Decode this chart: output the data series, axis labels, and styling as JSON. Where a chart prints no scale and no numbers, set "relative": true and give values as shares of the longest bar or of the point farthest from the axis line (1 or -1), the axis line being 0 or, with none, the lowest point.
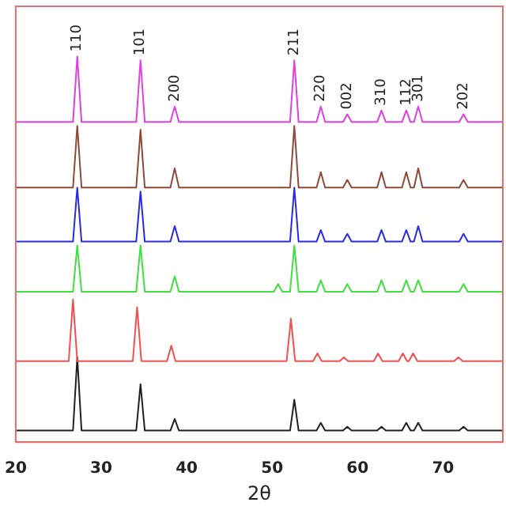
{
  "chart_data": {
    "type": "line",
    "relative": true,
    "xlabel": "2θ",
    "xlim": [
      20,
      77
    ],
    "xticks": [
      20,
      30,
      40,
      50,
      60,
      70
    ],
    "grid": false,
    "legend": false,
    "series": [
      {
        "color": "#e040e0",
        "x": [
          20,
          26.7,
          27.2,
          27.7,
          34.1,
          34.6,
          35.1,
          38.1,
          38.6,
          39.1,
          52.1,
          52.6,
          53.1,
          55.2,
          55.7,
          56.2,
          58.3,
          58.8,
          59.3,
          62.3,
          62.8,
          63.3,
          65.2,
          65.7,
          66.2,
          66.6,
          67.1,
          67.6,
          71.9,
          72.4,
          72.9,
          77
        ],
        "values": [
          0.83,
          0.83,
          1.0,
          0.83,
          0.83,
          0.99,
          0.83,
          0.83,
          0.87,
          0.83,
          0.83,
          0.99,
          0.83,
          0.83,
          0.87,
          0.83,
          0.83,
          0.85,
          0.83,
          0.83,
          0.86,
          0.83,
          0.83,
          0.86,
          0.83,
          0.83,
          0.87,
          0.83,
          0.83,
          0.85,
          0.83,
          0.83
        ]
      },
      {
        "color": "#8b4a3a",
        "x": [
          20,
          26.7,
          27.2,
          27.7,
          34.1,
          34.6,
          35.1,
          38.1,
          38.6,
          39.1,
          52.1,
          52.6,
          53.1,
          55.2,
          55.7,
          56.2,
          58.3,
          58.8,
          59.3,
          62.3,
          62.8,
          63.3,
          65.2,
          65.7,
          66.2,
          66.6,
          67.1,
          67.6,
          71.9,
          72.4,
          72.9,
          77
        ],
        "values": [
          0.66,
          0.66,
          0.82,
          0.66,
          0.66,
          0.81,
          0.66,
          0.66,
          0.71,
          0.66,
          0.66,
          0.82,
          0.66,
          0.66,
          0.7,
          0.66,
          0.66,
          0.68,
          0.66,
          0.66,
          0.7,
          0.66,
          0.66,
          0.7,
          0.66,
          0.66,
          0.71,
          0.66,
          0.66,
          0.68,
          0.66,
          0.66
        ]
      },
      {
        "color": "#2a2ae0",
        "x": [
          20,
          26.7,
          27.2,
          27.7,
          34.1,
          34.6,
          35.1,
          38.1,
          38.6,
          39.1,
          52.1,
          52.6,
          53.1,
          55.2,
          55.7,
          56.2,
          58.3,
          58.8,
          59.3,
          62.3,
          62.8,
          63.3,
          65.2,
          65.7,
          66.2,
          66.6,
          67.1,
          67.6,
          71.9,
          72.4,
          72.9,
          77
        ],
        "values": [
          0.52,
          0.52,
          0.66,
          0.52,
          0.52,
          0.65,
          0.52,
          0.52,
          0.56,
          0.52,
          0.52,
          0.66,
          0.52,
          0.52,
          0.55,
          0.52,
          0.52,
          0.54,
          0.52,
          0.52,
          0.55,
          0.52,
          0.52,
          0.55,
          0.52,
          0.52,
          0.56,
          0.52,
          0.52,
          0.54,
          0.52,
          0.52
        ]
      },
      {
        "color": "#40e040",
        "x": [
          20,
          26.7,
          27.2,
          27.7,
          34.1,
          34.6,
          35.1,
          38.1,
          38.6,
          39.1,
          50.2,
          50.7,
          51.2,
          52.1,
          52.6,
          53.1,
          55.2,
          55.7,
          56.2,
          58.3,
          58.8,
          59.3,
          62.3,
          62.8,
          63.3,
          65.2,
          65.7,
          66.2,
          66.6,
          67.1,
          67.6,
          71.9,
          72.4,
          72.9,
          77
        ],
        "values": [
          0.39,
          0.39,
          0.51,
          0.39,
          0.39,
          0.51,
          0.39,
          0.39,
          0.43,
          0.39,
          0.39,
          0.41,
          0.39,
          0.39,
          0.51,
          0.39,
          0.39,
          0.42,
          0.39,
          0.39,
          0.41,
          0.39,
          0.39,
          0.42,
          0.39,
          0.39,
          0.42,
          0.39,
          0.39,
          0.42,
          0.39,
          0.39,
          0.41,
          0.39,
          0.39
        ]
      },
      {
        "color": "#f05050",
        "x": [
          20,
          26.2,
          26.7,
          27.2,
          33.7,
          34.2,
          34.7,
          37.7,
          38.2,
          38.7,
          51.7,
          52.2,
          52.7,
          54.8,
          55.3,
          55.8,
          57.9,
          58.4,
          58.9,
          61.9,
          62.4,
          62.9,
          64.8,
          65.3,
          65.8,
          66.0,
          66.5,
          67.0,
          71.3,
          71.8,
          72.3,
          77
        ],
        "values": [
          0.21,
          0.21,
          0.37,
          0.21,
          0.21,
          0.35,
          0.21,
          0.21,
          0.25,
          0.21,
          0.21,
          0.32,
          0.21,
          0.21,
          0.23,
          0.21,
          0.21,
          0.22,
          0.21,
          0.21,
          0.23,
          0.21,
          0.21,
          0.23,
          0.21,
          0.21,
          0.23,
          0.21,
          0.21,
          0.22,
          0.21,
          0.21
        ]
      },
      {
        "color": "#202020",
        "x": [
          20,
          26.7,
          27.2,
          27.7,
          34.1,
          34.6,
          35.1,
          38.1,
          38.6,
          39.1,
          52.1,
          52.6,
          53.1,
          55.2,
          55.7,
          56.2,
          58.3,
          58.8,
          59.3,
          62.3,
          62.8,
          63.3,
          65.2,
          65.7,
          66.2,
          66.6,
          67.1,
          67.6,
          71.9,
          72.4,
          72.9,
          77
        ],
        "values": [
          0.03,
          0.03,
          0.22,
          0.03,
          0.03,
          0.15,
          0.03,
          0.03,
          0.06,
          0.03,
          0.03,
          0.11,
          0.03,
          0.03,
          0.05,
          0.03,
          0.03,
          0.04,
          0.03,
          0.03,
          0.04,
          0.03,
          0.03,
          0.05,
          0.03,
          0.03,
          0.05,
          0.03,
          0.03,
          0.04,
          0.03,
          0.03
        ]
      }
    ],
    "annotations": [
      {
        "text": "110",
        "x": 27.2,
        "y": 1.0
      },
      {
        "text": "101",
        "x": 34.6,
        "y": 0.99
      },
      {
        "text": "200",
        "x": 38.6,
        "y": 0.87
      },
      {
        "text": "211",
        "x": 52.6,
        "y": 0.99
      },
      {
        "text": "220",
        "x": 55.7,
        "y": 0.87
      },
      {
        "text": "002",
        "x": 58.8,
        "y": 0.85
      },
      {
        "text": "310",
        "x": 62.8,
        "y": 0.86
      },
      {
        "text": "112",
        "x": 65.7,
        "y": 0.86
      },
      {
        "text": "301",
        "x": 67.1,
        "y": 0.87
      },
      {
        "text": "202",
        "x": 72.4,
        "y": 0.85
      }
    ]
  }
}
